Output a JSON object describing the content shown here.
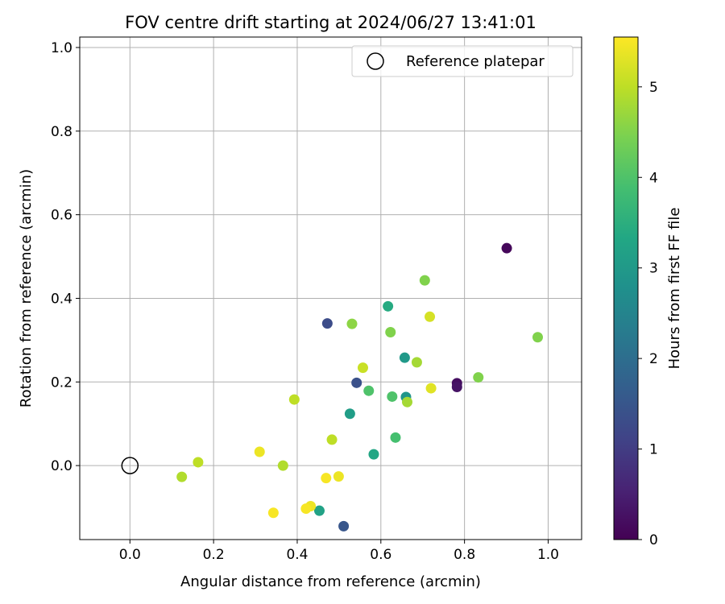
{
  "chart_data": {
    "type": "scatter",
    "title": "FOV centre drift starting at 2024/06/27 13:41:01",
    "xlabel": "Angular distance from reference (arcmin)",
    "ylabel": "Rotation from reference (arcmin)",
    "xlim": [
      -0.12,
      1.08
    ],
    "ylim": [
      -0.177,
      1.025
    ],
    "xticks": [
      "0.0",
      "0.2",
      "0.4",
      "0.6",
      "0.8",
      "1.0"
    ],
    "yticks": [
      "0.0",
      "0.2",
      "0.4",
      "0.6",
      "0.8",
      "1.0"
    ],
    "xtick_values": [
      0.0,
      0.2,
      0.4,
      0.6,
      0.8,
      1.0
    ],
    "ytick_values": [
      0.0,
      0.2,
      0.4,
      0.6,
      0.8,
      1.0
    ],
    "grid": true,
    "legend": {
      "position": "top-right",
      "entries": [
        {
          "label": "Reference platepar",
          "marker": "open-circle",
          "x": 0.0,
          "y": 0.0
        }
      ]
    },
    "colorbar": {
      "label": "Hours from first FF file",
      "colormap": "viridis",
      "range": [
        0,
        5.55
      ],
      "ticks": [
        "0",
        "1",
        "2",
        "3",
        "4",
        "5"
      ],
      "tick_values": [
        0,
        1,
        2,
        3,
        4,
        5
      ]
    },
    "points": [
      {
        "x": 0.901,
        "y": 0.52,
        "hours": 0.1
      },
      {
        "x": 0.782,
        "y": 0.197,
        "hours": 0.2
      },
      {
        "x": 0.782,
        "y": 0.188,
        "hours": 0.3
      },
      {
        "x": 0.472,
        "y": 0.34,
        "hours": 1.3
      },
      {
        "x": 0.542,
        "y": 0.198,
        "hours": 1.4
      },
      {
        "x": 0.511,
        "y": -0.145,
        "hours": 1.5
      },
      {
        "x": 0.66,
        "y": 0.164,
        "hours": 2.9
      },
      {
        "x": 0.657,
        "y": 0.258,
        "hours": 3.0
      },
      {
        "x": 0.526,
        "y": 0.124,
        "hours": 3.1
      },
      {
        "x": 0.453,
        "y": -0.108,
        "hours": 3.2
      },
      {
        "x": 0.583,
        "y": 0.027,
        "hours": 3.3
      },
      {
        "x": 0.617,
        "y": 0.381,
        "hours": 3.4
      },
      {
        "x": 0.635,
        "y": 0.067,
        "hours": 3.9
      },
      {
        "x": 0.627,
        "y": 0.165,
        "hours": 4.0
      },
      {
        "x": 0.571,
        "y": 0.179,
        "hours": 4.0
      },
      {
        "x": 0.833,
        "y": 0.211,
        "hours": 4.5
      },
      {
        "x": 0.623,
        "y": 0.319,
        "hours": 4.5
      },
      {
        "x": 0.705,
        "y": 0.443,
        "hours": 4.5
      },
      {
        "x": 0.975,
        "y": 0.307,
        "hours": 4.5
      },
      {
        "x": 0.531,
        "y": 0.339,
        "hours": 4.6
      },
      {
        "x": 0.663,
        "y": 0.152,
        "hours": 4.8
      },
      {
        "x": 0.686,
        "y": 0.247,
        "hours": 4.8
      },
      {
        "x": 0.366,
        "y": 0.0,
        "hours": 4.9
      },
      {
        "x": 0.124,
        "y": -0.027,
        "hours": 4.9
      },
      {
        "x": 0.163,
        "y": 0.008,
        "hours": 5.0
      },
      {
        "x": 0.393,
        "y": 0.158,
        "hours": 5.0
      },
      {
        "x": 0.483,
        "y": 0.062,
        "hours": 5.0
      },
      {
        "x": 0.557,
        "y": 0.234,
        "hours": 5.1
      },
      {
        "x": 0.717,
        "y": 0.356,
        "hours": 5.2
      },
      {
        "x": 0.72,
        "y": 0.185,
        "hours": 5.3
      },
      {
        "x": 0.31,
        "y": 0.033,
        "hours": 5.4
      },
      {
        "x": 0.432,
        "y": -0.097,
        "hours": 5.4
      },
      {
        "x": 0.499,
        "y": -0.026,
        "hours": 5.4
      },
      {
        "x": 0.343,
        "y": -0.113,
        "hours": 5.5
      },
      {
        "x": 0.421,
        "y": -0.103,
        "hours": 5.5
      },
      {
        "x": 0.469,
        "y": -0.03,
        "hours": 5.5
      }
    ]
  }
}
